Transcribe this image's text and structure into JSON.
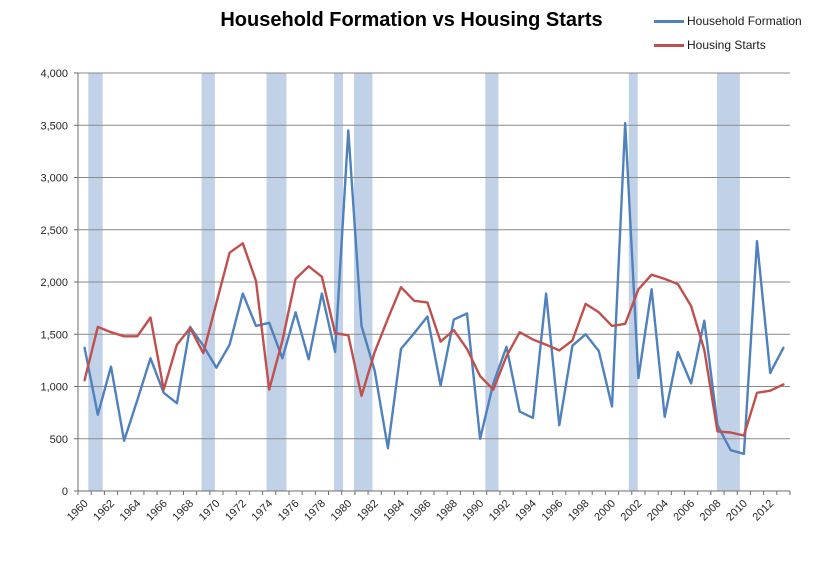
{
  "title": "Household Formation vs Housing Starts",
  "legend": [
    {
      "label": "Household Formation",
      "color": "#4F81BD"
    },
    {
      "label": "Housing Starts",
      "color": "#C0504D"
    }
  ],
  "chart_data": {
    "type": "line",
    "title": "Household Formation vs Housing Starts",
    "xlabel": "",
    "ylabel": "",
    "ylim": [
      0,
      4000
    ],
    "ytick_interval": 500,
    "ytick_labels": [
      "0",
      "500",
      "1,000",
      "1,500",
      "2,000",
      "2,500",
      "3,000",
      "3,500",
      "4,000"
    ],
    "xtick_labels": [
      "1960",
      "1962",
      "1964",
      "1966",
      "1968",
      "1970",
      "1972",
      "1974",
      "1976",
      "1978",
      "1980",
      "1982",
      "1984",
      "1986",
      "1988",
      "1990",
      "1992",
      "1994",
      "1996",
      "1998",
      "2000",
      "2002",
      "2004",
      "2006",
      "2008",
      "2010",
      "2012"
    ],
    "grid": "horizontal",
    "legend_position": "top-right",
    "x": [
      1960,
      1961,
      1962,
      1963,
      1964,
      1965,
      1966,
      1967,
      1968,
      1969,
      1970,
      1971,
      1972,
      1973,
      1974,
      1975,
      1976,
      1977,
      1978,
      1979,
      1980,
      1981,
      1982,
      1983,
      1984,
      1985,
      1986,
      1987,
      1988,
      1989,
      1990,
      1991,
      1992,
      1993,
      1994,
      1995,
      1996,
      1997,
      1998,
      1999,
      2000,
      2001,
      2002,
      2003,
      2004,
      2005,
      2006,
      2007,
      2008,
      2009,
      2010,
      2011,
      2012,
      2013
    ],
    "series": [
      {
        "name": "Household Formation",
        "color": "#4F81BD",
        "values": [
          1370,
          730,
          1190,
          480,
          870,
          1270,
          940,
          840,
          1570,
          1390,
          1180,
          1400,
          1890,
          1580,
          1610,
          1270,
          1710,
          1260,
          1890,
          1330,
          3450,
          1580,
          1150,
          410,
          1360,
          1510,
          1670,
          1010,
          1640,
          1700,
          500,
          1030,
          1380,
          760,
          700,
          1890,
          630,
          1390,
          1500,
          1340,
          810,
          3520,
          1080,
          1930,
          710,
          1330,
          1030,
          1630,
          630,
          390,
          355,
          2390,
          1130,
          1370
        ]
      },
      {
        "name": "Housing Starts",
        "color": "#C0504D",
        "values": [
          1060,
          1570,
          1520,
          1480,
          1480,
          1660,
          970,
          1400,
          1560,
          1320,
          1800,
          2280,
          2370,
          2010,
          970,
          1440,
          2030,
          2150,
          2050,
          1510,
          1490,
          910,
          1330,
          1650,
          1950,
          1820,
          1805,
          1430,
          1540,
          1360,
          1100,
          970,
          1290,
          1520,
          1450,
          1400,
          1345,
          1440,
          1790,
          1710,
          1580,
          1600,
          1930,
          2070,
          2030,
          1980,
          1770,
          1350,
          570,
          560,
          530,
          940,
          960,
          1020
        ]
      }
    ],
    "recession_bands": [
      {
        "start": 1960.28,
        "end": 1961.37
      },
      {
        "start": 1968.87,
        "end": 1969.88
      },
      {
        "start": 1973.8,
        "end": 1975.31
      },
      {
        "start": 1978.92,
        "end": 1979.6
      },
      {
        "start": 1980.43,
        "end": 1981.83
      },
      {
        "start": 1990.39,
        "end": 1991.39
      },
      {
        "start": 2001.27,
        "end": 2001.95
      },
      {
        "start": 2007.96,
        "end": 2009.7
      }
    ],
    "band_color": "#C1D2E8",
    "gridline_color": "#898989",
    "axis_color": "#6e6e6e",
    "label_color": "#262626"
  }
}
